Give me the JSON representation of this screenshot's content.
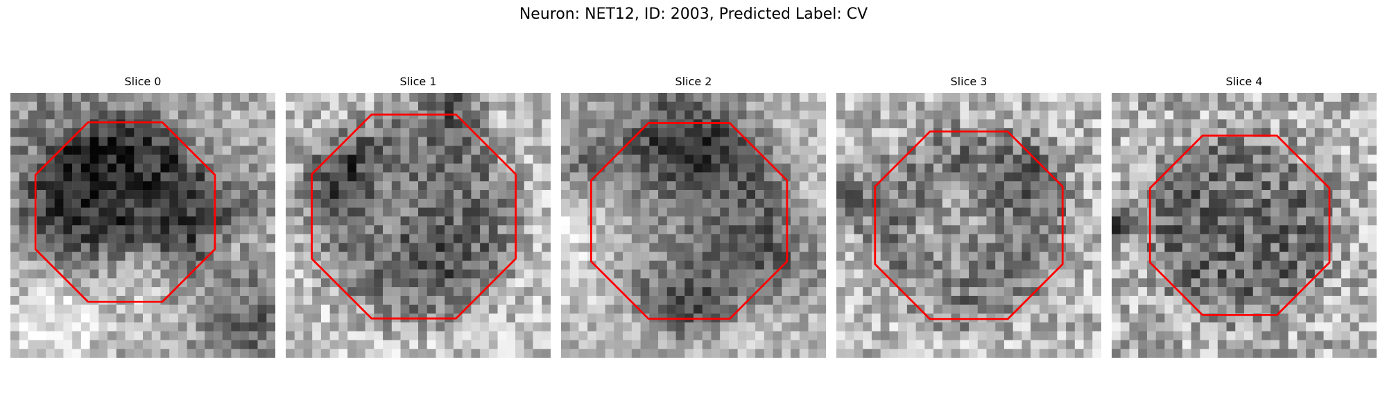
{
  "figure": {
    "title": "Neuron: NET12, ID: 2003, Predicted Label: CV"
  },
  "panels": [
    {
      "title": "Slice 0"
    },
    {
      "title": "Slice 1"
    },
    {
      "title": "Slice 2"
    },
    {
      "title": "Slice 3"
    },
    {
      "title": "Slice 4"
    }
  ],
  "colors": {
    "contour": "#ff0000",
    "colormap": "grayscale"
  }
}
